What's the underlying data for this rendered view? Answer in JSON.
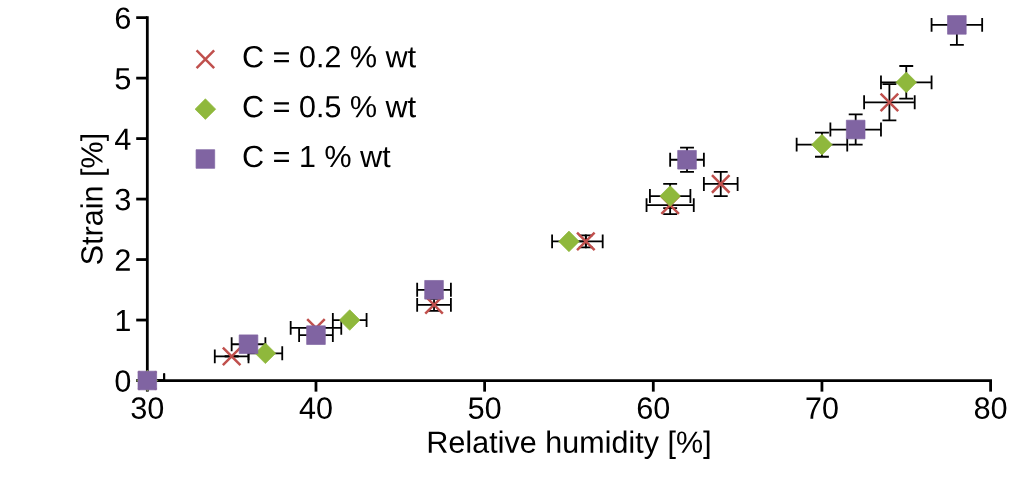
{
  "chart_data": {
    "type": "scatter",
    "xlabel": "Relative humidity [%]",
    "ylabel": "Strain [%]",
    "xlim": [
      30,
      80
    ],
    "xticks": [
      30,
      40,
      50,
      60,
      70,
      80
    ],
    "ylim": [
      0,
      6
    ],
    "yticks": [
      0,
      1,
      2,
      3,
      4,
      5,
      6
    ],
    "grid": false,
    "legend": "top left",
    "series": [
      {
        "name": "C = 0.2 % wt",
        "color": "#c0504d",
        "marker": "cross",
        "x": [
          30,
          35,
          40,
          47,
          56,
          61,
          64,
          74
        ],
        "values": [
          0,
          0.4,
          0.87,
          1.25,
          2.3,
          2.9,
          3.25,
          4.6
        ],
        "errors": [
          null,
          null,
          null,
          0.1,
          0.1,
          0.15,
          0.2,
          0.3
        ],
        "xerrors": [
          1,
          1,
          1.5,
          1,
          1,
          1.4,
          1,
          1.5
        ]
      },
      {
        "name": "C = 0.5 % wt",
        "color": "#8fb83c",
        "marker": "diamond",
        "x": [
          30,
          37,
          42,
          55,
          61,
          70,
          75
        ],
        "values": [
          0,
          0.45,
          1.0,
          2.3,
          3.05,
          3.9,
          4.93
        ],
        "errors": [
          null,
          null,
          null,
          null,
          0.2,
          0.2,
          0.27
        ],
        "xerrors": [
          1,
          1,
          1,
          1,
          1.2,
          1.5,
          1.5
        ]
      },
      {
        "name": "C = 1 % wt",
        "color": "#8064a2",
        "marker": "square",
        "x": [
          30,
          36,
          40,
          47,
          62,
          72,
          78
        ],
        "values": [
          0,
          0.6,
          0.75,
          1.5,
          3.65,
          4.15,
          5.88
        ],
        "errors": [
          null,
          null,
          null,
          null,
          0.2,
          0.25,
          [
            5.55,
            5.88
          ]
        ],
        "xerrors": [
          1,
          1,
          1,
          1,
          1,
          1.5,
          1.5
        ]
      }
    ]
  }
}
